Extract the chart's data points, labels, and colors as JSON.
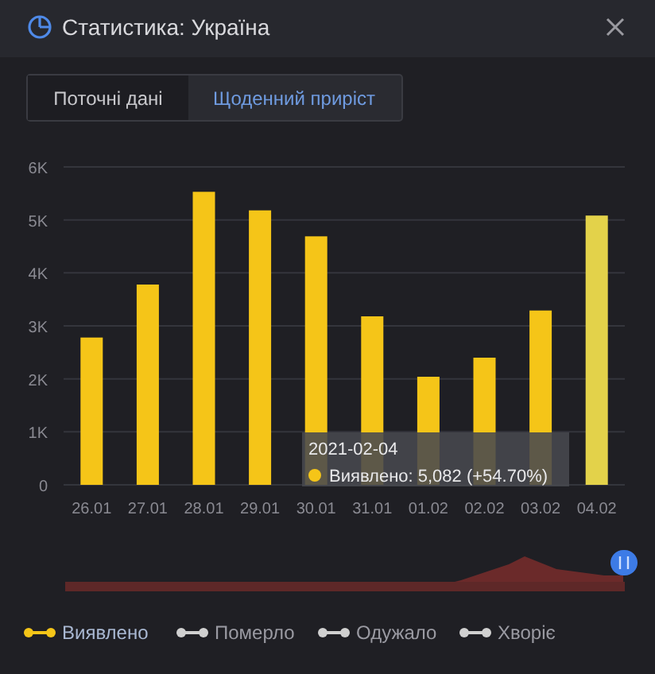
{
  "chart_data": {
    "type": "bar",
    "title": "Статистика: Україна",
    "annotations": [
      "Поточні дані",
      "Щоденний приріст",
      "2021-02-04\nВиявлено: 5,082 (+54.70%)"
    ],
    "categories": [
      "26.01",
      "27.01",
      "28.01",
      "29.01",
      "30.01",
      "31.01",
      "01.02",
      "02.02",
      "03.02",
      "04.02"
    ],
    "series": [
      {
        "name": "Виявлено",
        "color": "#f5c518",
        "colors": [
          "#f5c518",
          "#f5c518",
          "#f5c518",
          "#f5c518",
          "#f5c518",
          "#f5c518",
          "#f5c518",
          "#f5c518",
          "#f5c518",
          "#e3d24a"
        ],
        "values": [
          2780,
          3780,
          5530,
          5180,
          4690,
          3180,
          2040,
          2400,
          3290,
          5082
        ]
      },
      {
        "name": "Померло",
        "color": "#d0d0d0",
        "values": [
          null,
          null,
          null,
          null,
          null,
          null,
          null,
          null,
          null,
          null
        ]
      },
      {
        "name": "Одужало",
        "color": "#d0d0d0",
        "values": [
          null,
          null,
          null,
          null,
          null,
          null,
          null,
          null,
          null,
          null
        ]
      },
      {
        "name": "Хворіє",
        "color": "#d0d0d0",
        "values": [
          null,
          null,
          null,
          null,
          null,
          null,
          null,
          null,
          null,
          null
        ]
      }
    ],
    "ylim": [
      0,
      6000
    ],
    "yticks": [
      0,
      {
        "value": 1000,
        "label": "1K"
      },
      {
        "value": 2000,
        "label": "2K"
      },
      {
        "value": 3000,
        "label": "3K"
      },
      {
        "value": 4000,
        "label": "4K"
      },
      {
        "value": 5000,
        "label": "5K"
      },
      {
        "value": 6000,
        "label": "6K"
      }
    ],
    "grid": "y",
    "legend": "bottom",
    "marker": "circle"
  }
}
